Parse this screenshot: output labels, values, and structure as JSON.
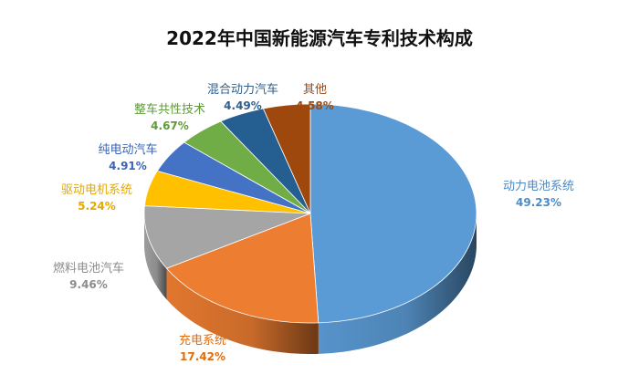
{
  "chart_data": {
    "type": "pie",
    "title": "2022年中国新能源汽车专利技术构成",
    "unit": "%",
    "slices": [
      {
        "label": "动力电池系统",
        "value": 49.23,
        "value_label": "49.23%",
        "color": "#5B9BD5",
        "label_color": "#4A8BCB"
      },
      {
        "label": "充电系统",
        "value": 17.42,
        "value_label": "17.42%",
        "color": "#ED7D31",
        "label_color": "#E46C0A"
      },
      {
        "label": "燃料电池汽车",
        "value": 9.46,
        "value_label": "9.46%",
        "color": "#A5A5A5",
        "label_color": "#8C8C8C"
      },
      {
        "label": "驱动电机系统",
        "value": 5.24,
        "value_label": "5.24%",
        "color": "#FFC000",
        "label_color": "#E6A800"
      },
      {
        "label": "纯电动汽车",
        "value": 4.91,
        "value_label": "4.91%",
        "color": "#4472C4",
        "label_color": "#3A64B5"
      },
      {
        "label": "整车共性技术",
        "value": 4.67,
        "value_label": "4.67%",
        "color": "#70AD47",
        "label_color": "#5E9A38"
      },
      {
        "label": "混合动力汽车",
        "value": 4.49,
        "value_label": "4.49%",
        "color": "#255E91",
        "label_color": "#2E5F8E"
      },
      {
        "label": "其他",
        "value": 4.58,
        "value_label": "4.58%",
        "color": "#9E480E",
        "label_color": "#9E480E"
      }
    ]
  }
}
